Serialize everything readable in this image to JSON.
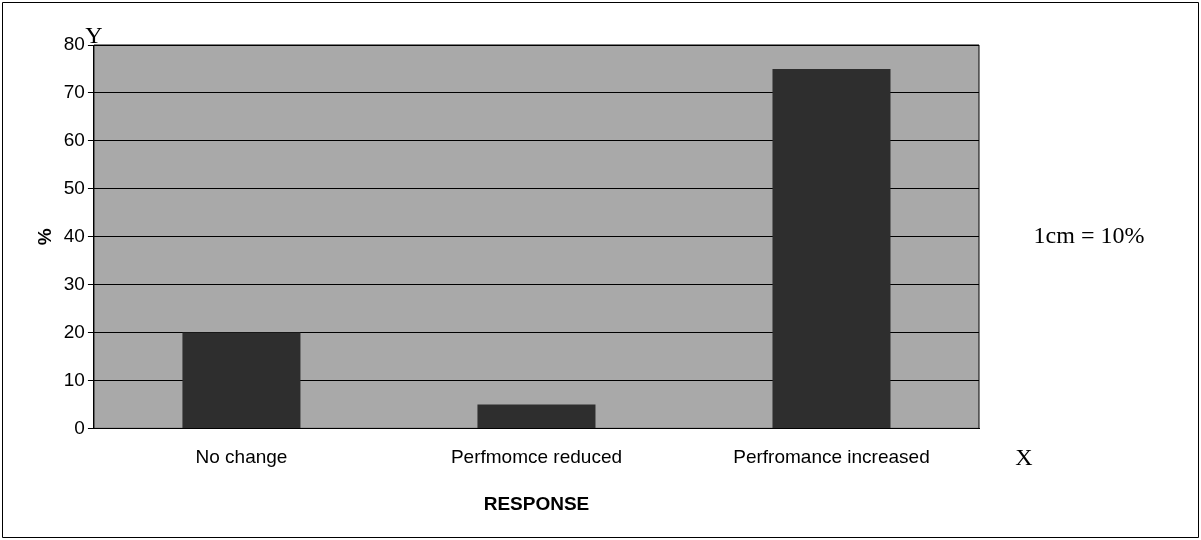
{
  "chart_data": {
    "type": "bar",
    "xlabel": "RESPONSE",
    "ylabel": "%",
    "categories": [
      "No change",
      "Perfmomce reduced",
      "Perfromance increased"
    ],
    "values": [
      20,
      5,
      75
    ],
    "color": "#2e2e2e",
    "ylim": [
      0,
      80
    ],
    "yticks": [
      0,
      10,
      20,
      30,
      40,
      50,
      60,
      70,
      80
    ],
    "grid": "y",
    "legend": false,
    "annotations": [
      "Y",
      "X",
      "1cm = 10%"
    ]
  }
}
